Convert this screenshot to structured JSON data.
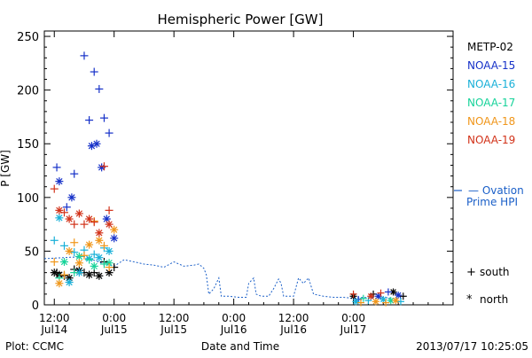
{
  "chart_data": {
    "type": "scatter",
    "title": "Hemispheric Power [GW]",
    "ylabel": "P [GW]",
    "xlabel": "Date and Time",
    "ylim": [
      0,
      255
    ],
    "xlim_hours": [
      -14,
      68
    ],
    "y_ticks": [
      "0",
      "50",
      "100",
      "150",
      "200",
      "250"
    ],
    "x_ticks": [
      {
        "time": "12:00",
        "date": "Jul14"
      },
      {
        "time": "0:00",
        "date": "Jul15"
      },
      {
        "time": "12:00",
        "date": "Jul15"
      },
      {
        "time": "0:00",
        "date": "Jul16"
      },
      {
        "time": "12:00",
        "date": "Jul16"
      },
      {
        "time": "0:00",
        "date": "Jul17"
      }
    ],
    "x_tick_hours": [
      -12,
      0,
      12,
      24,
      36,
      48
    ],
    "markers": {
      "south": "+",
      "north": "*"
    },
    "marker_legend": [
      {
        "symbol": "+",
        "label": "south"
      },
      {
        "symbol": "*",
        "label": "north"
      }
    ],
    "ovation_label_line1": "— Ovation",
    "ovation_label_line2": "Prime HPI",
    "ovation_color": "#1a5fc8",
    "series": [
      {
        "name": "METP-02",
        "color": "#000000",
        "south": [
          [
            -11.5,
            30
          ],
          [
            -10,
            27
          ],
          [
            -8,
            33
          ],
          [
            -6,
            30
          ],
          [
            -4,
            30
          ],
          [
            -2,
            40
          ],
          [
            0,
            35
          ]
        ],
        "north": [
          [
            -12,
            30
          ],
          [
            -11,
            28
          ],
          [
            -9,
            25
          ],
          [
            -7,
            32
          ],
          [
            -5,
            28
          ],
          [
            -3,
            27
          ],
          [
            -1,
            30
          ]
        ]
      },
      {
        "name": "NOAA-15",
        "color": "#1530c8",
        "south": [
          [
            -11.5,
            128
          ],
          [
            -9.5,
            91
          ],
          [
            -8,
            122
          ],
          [
            -6,
            232
          ],
          [
            -5,
            172
          ],
          [
            -4,
            217
          ],
          [
            -3,
            201
          ],
          [
            -2,
            174
          ],
          [
            -1,
            160
          ]
        ],
        "north": [
          [
            -11,
            115
          ],
          [
            -8.5,
            100
          ],
          [
            -4.5,
            148
          ],
          [
            -3.5,
            150
          ],
          [
            -2.5,
            128
          ],
          [
            -1.5,
            80
          ],
          [
            0,
            62
          ]
        ]
      },
      {
        "name": "NOAA-16",
        "color": "#19b0d8",
        "south": [
          [
            -12,
            60
          ],
          [
            -10,
            55
          ],
          [
            -8,
            49
          ],
          [
            -6,
            51
          ],
          [
            -4,
            47
          ],
          [
            -2,
            53
          ]
        ],
        "north": [
          [
            -11,
            81
          ],
          [
            -9,
            21
          ],
          [
            -7,
            30
          ],
          [
            -5,
            43
          ],
          [
            -3,
            44
          ],
          [
            -1,
            50
          ]
        ]
      },
      {
        "name": "NOAA-17",
        "color": "#17d39a",
        "south": [
          [
            -11,
            25
          ],
          [
            -8,
            30
          ],
          [
            -5,
            42
          ],
          [
            -2,
            38
          ]
        ],
        "north": [
          [
            -10,
            40
          ],
          [
            -7,
            45
          ],
          [
            -4,
            36
          ],
          [
            -1,
            39
          ]
        ]
      },
      {
        "name": "NOAA-18",
        "color": "#f0961a",
        "south": [
          [
            -12,
            40
          ],
          [
            -10,
            28
          ],
          [
            -8,
            58
          ],
          [
            -6,
            46
          ],
          [
            -4,
            78
          ],
          [
            -2,
            55
          ],
          [
            -1,
            35
          ]
        ],
        "north": [
          [
            -11,
            20
          ],
          [
            -9,
            50
          ],
          [
            -7,
            39
          ],
          [
            -5,
            56
          ],
          [
            -3,
            60
          ],
          [
            0,
            70
          ]
        ]
      },
      {
        "name": "NOAA-19",
        "color": "#d23219",
        "south": [
          [
            -12,
            108
          ],
          [
            -10,
            86
          ],
          [
            -8,
            75
          ],
          [
            -6,
            75
          ],
          [
            -4,
            77
          ],
          [
            -2,
            129
          ],
          [
            -1,
            88
          ]
        ],
        "north": [
          [
            -11,
            88
          ],
          [
            -9,
            80
          ],
          [
            -7,
            85
          ],
          [
            -5,
            80
          ],
          [
            -3,
            67
          ],
          [
            -1,
            75
          ]
        ]
      }
    ],
    "ovation_prime": [
      [
        -14,
        43
      ],
      [
        -10,
        44
      ],
      [
        -6,
        45
      ],
      [
        -2,
        38
      ],
      [
        0,
        36
      ],
      [
        2,
        42
      ],
      [
        4,
        40
      ],
      [
        6,
        38
      ],
      [
        8,
        37
      ],
      [
        10,
        35
      ],
      [
        12,
        40
      ],
      [
        14,
        36
      ],
      [
        16,
        37
      ],
      [
        17,
        38
      ],
      [
        18,
        34
      ],
      [
        18.5,
        28
      ],
      [
        19,
        10
      ],
      [
        20,
        15
      ],
      [
        21,
        25
      ],
      [
        21.5,
        8
      ],
      [
        23,
        8
      ],
      [
        25,
        7
      ],
      [
        26.5,
        7
      ],
      [
        27,
        20
      ],
      [
        28,
        25
      ],
      [
        28.5,
        10
      ],
      [
        29.5,
        8
      ],
      [
        31,
        8
      ],
      [
        32,
        15
      ],
      [
        33,
        24
      ],
      [
        33.5,
        20
      ],
      [
        34,
        8
      ],
      [
        36,
        8
      ],
      [
        37,
        25
      ],
      [
        38,
        20
      ],
      [
        39,
        25
      ],
      [
        40,
        10
      ],
      [
        42,
        8
      ],
      [
        44,
        7
      ],
      [
        46,
        7
      ],
      [
        48,
        6
      ],
      [
        50,
        7
      ],
      [
        52,
        6
      ],
      [
        54,
        7
      ],
      [
        56,
        6
      ],
      [
        58,
        6
      ]
    ],
    "late_cluster": [
      {
        "series": 0,
        "points": [
          [
            48,
            8,
            "n"
          ],
          [
            52,
            10,
            "s"
          ],
          [
            56,
            12,
            "n"
          ],
          [
            58,
            8,
            "s"
          ]
        ]
      },
      {
        "series": 1,
        "points": [
          [
            49,
            5,
            "s"
          ],
          [
            53,
            8,
            "n"
          ],
          [
            55,
            12,
            "s"
          ],
          [
            57,
            9,
            "n"
          ]
        ]
      },
      {
        "series": 2,
        "points": [
          [
            48.5,
            3,
            "n"
          ],
          [
            51,
            4,
            "s"
          ],
          [
            54,
            5,
            "n"
          ],
          [
            57.5,
            3,
            "s"
          ]
        ]
      },
      {
        "series": 3,
        "points": [
          [
            50,
            6,
            "s"
          ],
          [
            55.5,
            4,
            "n"
          ]
        ]
      },
      {
        "series": 4,
        "points": [
          [
            49.5,
            2,
            "s"
          ],
          [
            52.5,
            3,
            "n"
          ],
          [
            54.5,
            2,
            "s"
          ],
          [
            56.5,
            4,
            "n"
          ]
        ]
      },
      {
        "series": 5,
        "points": [
          [
            48,
            10,
            "s"
          ],
          [
            51.5,
            8,
            "n"
          ],
          [
            53.5,
            11,
            "s"
          ]
        ]
      }
    ]
  },
  "footer": {
    "plot_credit": "Plot: CCMC",
    "timestamp": "2013/07/17 10:25:05"
  }
}
